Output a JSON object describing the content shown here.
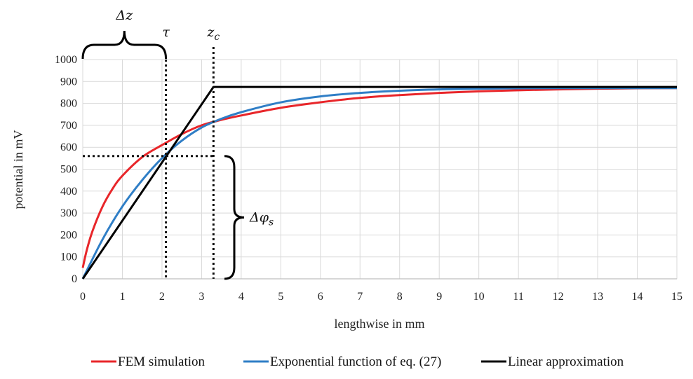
{
  "chart_data": {
    "type": "line",
    "xlabel": "lengthwise in mm",
    "ylabel": "potential in mV",
    "xlim": [
      0,
      15
    ],
    "ylim": [
      0,
      1000
    ],
    "x_ticks": [
      0,
      1,
      2,
      3,
      4,
      5,
      6,
      7,
      8,
      9,
      10,
      11,
      12,
      13,
      14,
      15
    ],
    "y_ticks": [
      0,
      100,
      200,
      300,
      400,
      500,
      600,
      700,
      800,
      900,
      1000
    ],
    "grid": "vertical and horizontal",
    "legend_position": "bottom",
    "series": [
      {
        "name": "FEM simulation",
        "color": "#e8262a",
        "x": [
          0,
          0.1,
          0.25,
          0.5,
          0.75,
          1,
          1.5,
          2,
          2.5,
          3,
          3.5,
          4,
          5,
          6,
          7,
          8,
          9,
          10,
          11,
          12,
          13,
          14,
          15
        ],
        "y": [
          50,
          130,
          220,
          330,
          410,
          470,
          555,
          610,
          660,
          700,
          725,
          745,
          780,
          805,
          825,
          838,
          848,
          855,
          860,
          864,
          867,
          869,
          870
        ]
      },
      {
        "name": "Exponential function of eq. (27)",
        "color": "#2f7ec6",
        "x": [
          0,
          0.5,
          1,
          1.5,
          2,
          2.5,
          3,
          3.5,
          4,
          5,
          6,
          7,
          8,
          9,
          10,
          11,
          12,
          13,
          14,
          15
        ],
        "y": [
          0,
          180,
          330,
          450,
          550,
          630,
          690,
          730,
          760,
          805,
          832,
          848,
          858,
          864,
          867,
          869,
          870,
          870,
          870,
          870
        ]
      },
      {
        "name": "Linear approximation",
        "color": "#000000",
        "x": [
          0,
          3.3,
          15
        ],
        "y": [
          0,
          875,
          875
        ]
      }
    ],
    "annotations": {
      "delta_z": "Δz",
      "tau": "τ",
      "z_c": "z",
      "z_c_sub": "c",
      "delta_phi": "Δφ",
      "delta_phi_sub": "s",
      "tau_x": 2.1,
      "z_c_x": 3.3,
      "phi_s_y": 560
    }
  }
}
